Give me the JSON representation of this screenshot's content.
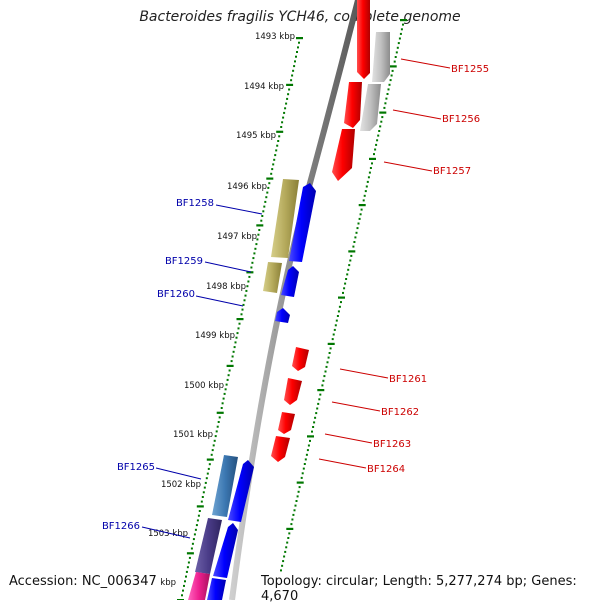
{
  "title": "Bacteroides fragilis YCH46, complete genome",
  "footer": {
    "accession": "Accession: NC_006347",
    "summary": "Topology: circular; Length: 5,277,274 bp; Genes: 4,670"
  },
  "colors": {
    "backbone": "#808080",
    "forward_gene": "#0000ff",
    "reverse_gene": "#ff0000",
    "tick": "#007700",
    "label_forward": "#0000aa",
    "label_reverse": "#cc0000"
  },
  "ruler": {
    "labels": [
      "1493 kbp",
      "1494 kbp",
      "1495 kbp",
      "1496 kbp",
      "1497 kbp",
      "1498 kbp",
      "1499 kbp",
      "1500 kbp",
      "1501 kbp",
      "1502 kbp",
      "1503 kbp",
      "1504 kbp"
    ]
  },
  "genes_forward": [
    {
      "label": "BF1258"
    },
    {
      "label": "BF1259"
    },
    {
      "label": "BF1260"
    },
    {
      "label": "BF1265"
    },
    {
      "label": "BF1266"
    }
  ],
  "genes_reverse": [
    {
      "label": "BF1255"
    },
    {
      "label": "BF1256"
    },
    {
      "label": "BF1257"
    },
    {
      "label": "BF1261"
    },
    {
      "label": "BF1262"
    },
    {
      "label": "BF1263"
    },
    {
      "label": "BF1264"
    }
  ]
}
